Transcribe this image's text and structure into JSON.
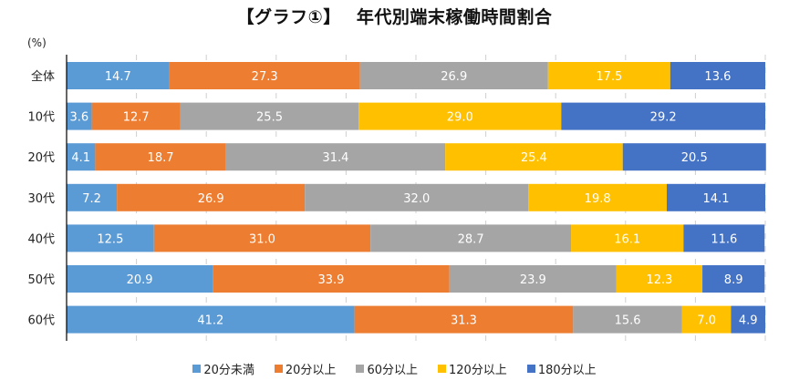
{
  "chart_data": {
    "type": "bar",
    "orientation": "horizontal",
    "stacked": "percent",
    "title": "【グラフ①】　 年代別端末稼働時間割合",
    "unit_label": "(%)",
    "xlabel": "",
    "ylabel": "",
    "xlim": [
      0,
      100
    ],
    "grid": "vertical dashed, every 10%",
    "legend_position": "bottom",
    "categories": [
      "全体",
      "10代",
      "20代",
      "30代",
      "40代",
      "50代",
      "60代"
    ],
    "series": [
      {
        "name": "20分未満",
        "color": "#5B9BD5",
        "values": [
          14.7,
          3.6,
          4.1,
          7.2,
          12.5,
          20.9,
          41.2
        ]
      },
      {
        "name": "20分以上",
        "color": "#ED7D31",
        "values": [
          27.3,
          12.7,
          18.7,
          26.9,
          31.0,
          33.9,
          31.3
        ]
      },
      {
        "name": "60分以上",
        "color": "#A5A5A5",
        "values": [
          26.9,
          25.5,
          31.4,
          32.0,
          28.7,
          23.9,
          15.6
        ]
      },
      {
        "name": "120分以上",
        "color": "#FFC000",
        "values": [
          17.5,
          29.0,
          25.4,
          19.8,
          16.1,
          12.3,
          7.0
        ]
      },
      {
        "name": "180分以上",
        "color": "#4472C4",
        "values": [
          13.6,
          29.2,
          20.5,
          14.1,
          11.6,
          8.9,
          4.9
        ]
      }
    ]
  }
}
